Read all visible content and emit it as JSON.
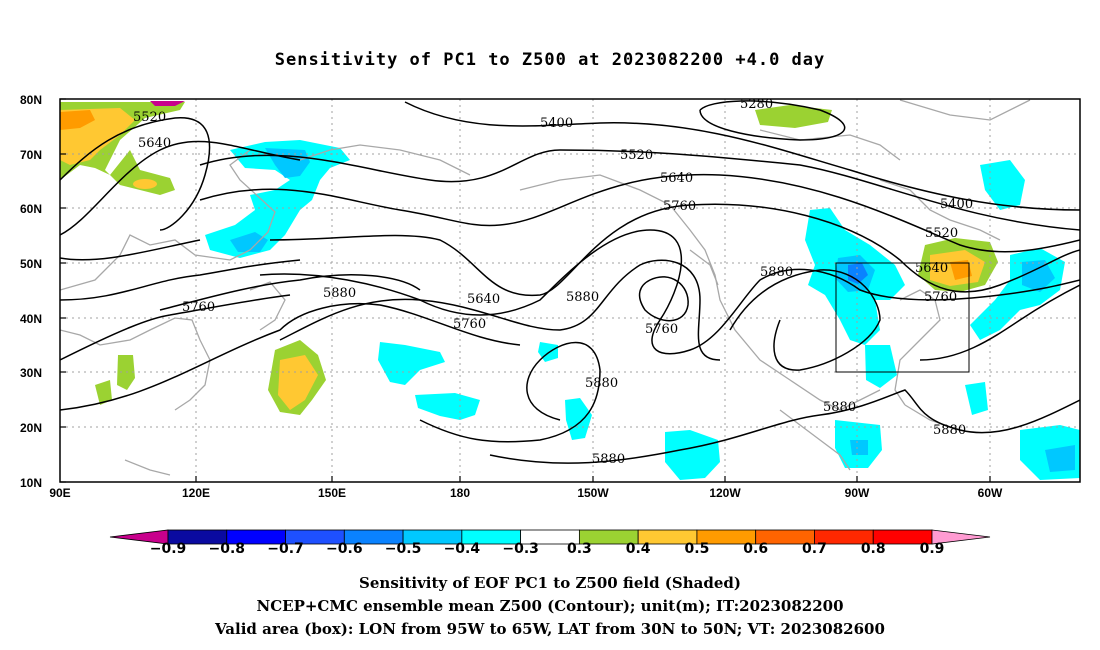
{
  "title": "Sensitivity of PC1 to Z500 at 2023082200 +4.0 day",
  "lat_ticks": [
    "80N",
    "70N",
    "60N",
    "50N",
    "40N",
    "30N",
    "20N",
    "10N"
  ],
  "lon_ticks": [
    "90E",
    "120E",
    "150E",
    "180",
    "150W",
    "120W",
    "90W",
    "60W"
  ],
  "contour_labels": [
    "5280",
    "5400",
    "5400",
    "5520",
    "5520",
    "5520",
    "5640",
    "5640",
    "5640",
    "5640",
    "5760",
    "5760",
    "5760",
    "5760",
    "5760",
    "5880",
    "5880",
    "5880",
    "5880",
    "5880",
    "5880",
    "5880"
  ],
  "colorbar": {
    "labels": [
      "−0.9",
      "−0.8",
      "−0.7",
      "−0.6",
      "−0.5",
      "−0.4",
      "−0.3",
      "0.3",
      "0.4",
      "0.5",
      "0.6",
      "0.7",
      "0.8",
      "0.9"
    ],
    "colors": [
      "#c8008c",
      "#0a0aa0",
      "#0000ff",
      "#1e50ff",
      "#0a82ff",
      "#00c8ff",
      "#00ffff",
      "#ffffff",
      "#9bd232",
      "#ffc832",
      "#ff9b00",
      "#ff6400",
      "#ff2800",
      "#ff0000",
      "#ff9bd2"
    ]
  },
  "captions": {
    "line1": "Sensitivity of EOF PC1 to Z500 field (Shaded)",
    "line2": "NCEP+CMC ensemble mean Z500 (Contour); unit(m); IT:2023082200",
    "line3": "Valid area (box): LON from 95W to 65W, LAT from 30N to 50N; VT: 2023082600"
  }
}
